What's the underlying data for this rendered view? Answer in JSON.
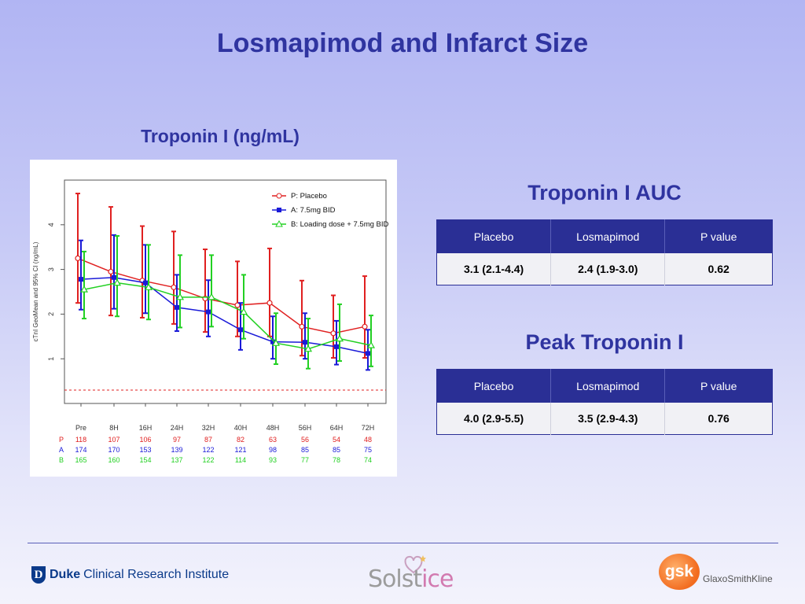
{
  "slide": {
    "title": "Losmapimod and Infarct Size",
    "chart_subtitle": "Troponin I (ng/mL)"
  },
  "chart_data": {
    "type": "line",
    "ylabel": "cTnI GeoMean and 95% CI (ng/mL)",
    "x": [
      "Pre",
      "8H",
      "16H",
      "24H",
      "32H",
      "40H",
      "48H",
      "56H",
      "64H",
      "72H"
    ],
    "ylim": [
      0,
      5
    ],
    "yticks": [
      1,
      2,
      3,
      4
    ],
    "reference_line": 0.3,
    "legend_position": "top-right",
    "series": [
      {
        "name": "P: Placebo",
        "key": "P",
        "color": "#e02020",
        "marker": "circle",
        "values": [
          3.25,
          2.95,
          2.75,
          2.6,
          2.35,
          2.2,
          2.25,
          1.72,
          1.57,
          1.72
        ],
        "lower": [
          2.25,
          1.97,
          1.92,
          1.78,
          1.6,
          1.5,
          1.5,
          1.07,
          1.02,
          1.02
        ],
        "upper": [
          4.7,
          4.4,
          3.97,
          3.85,
          3.45,
          3.18,
          3.47,
          2.75,
          2.42,
          2.85
        ],
        "n": [
          "118",
          "107",
          "106",
          "97",
          "87",
          "82",
          "63",
          "56",
          "54",
          "48"
        ]
      },
      {
        "name": "A: 7.5mg BID",
        "key": "A",
        "color": "#1a1ad8",
        "marker": "square",
        "values": [
          2.78,
          2.82,
          2.7,
          2.15,
          2.05,
          1.65,
          1.38,
          1.37,
          1.27,
          1.12
        ],
        "lower": [
          2.1,
          2.12,
          2.02,
          1.62,
          1.5,
          1.2,
          1.0,
          1.0,
          0.87,
          0.75
        ],
        "upper": [
          3.65,
          3.77,
          3.55,
          2.88,
          2.76,
          2.25,
          1.95,
          2.02,
          1.85,
          1.65
        ],
        "n": [
          "174",
          "170",
          "153",
          "139",
          "122",
          "121",
          "98",
          "85",
          "85",
          "75"
        ]
      },
      {
        "name": "B: Loading dose + 7.5mg BID",
        "key": "B",
        "color": "#22d022",
        "marker": "triangle",
        "values": [
          2.55,
          2.7,
          2.6,
          2.38,
          2.38,
          2.05,
          1.35,
          1.22,
          1.45,
          1.3
        ],
        "lower": [
          1.9,
          1.95,
          1.88,
          1.7,
          1.72,
          1.45,
          0.88,
          0.78,
          0.95,
          0.83
        ],
        "upper": [
          3.4,
          3.75,
          3.55,
          3.32,
          3.32,
          2.88,
          2.02,
          1.9,
          2.22,
          1.97
        ],
        "n": [
          "165",
          "160",
          "154",
          "137",
          "122",
          "114",
          "93",
          "77",
          "78",
          "74"
        ]
      }
    ]
  },
  "auc": {
    "title": "Troponin I AUC",
    "headers": [
      "Placebo",
      "Losmapimod",
      "P value"
    ],
    "row": [
      "3.1 (2.1-4.4)",
      "2.4 (1.9-3.0)",
      "0.62"
    ]
  },
  "peak": {
    "title": "Peak Troponin I",
    "headers": [
      "Placebo",
      "Losmapimod",
      "P value"
    ],
    "row": [
      "4.0 (2.9-5.5)",
      "3.5 (2.9-4.3)",
      "0.76"
    ]
  },
  "footer": {
    "duke_mark": "D",
    "duke_word": "Duke",
    "duke_rest": "Clinical Research Institute",
    "solstice_main": "Solst",
    "solstice_accent": "ice",
    "gsk_mark": "gsk",
    "gsk_word": "GlaxoSmithKline"
  }
}
